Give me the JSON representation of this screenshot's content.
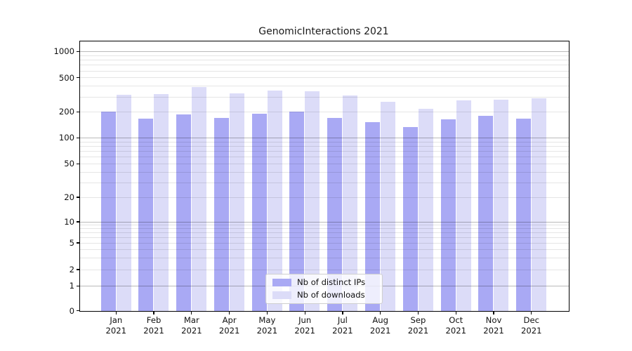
{
  "figure": {
    "background": "#ffffff"
  },
  "chart_data": {
    "type": "bar",
    "title": "GenomicInteractions 2021",
    "categories": [
      "Jan",
      "Feb",
      "Mar",
      "Apr",
      "May",
      "Jun",
      "Jul",
      "Aug",
      "Sep",
      "Oct",
      "Nov",
      "Dec"
    ],
    "x_tick_year_line": "2021",
    "series": [
      {
        "name": "Nb of distinct IPs",
        "color": "#a9a9f4",
        "values": [
          200,
          165,
          185,
          170,
          188,
          200,
          168,
          150,
          133,
          163,
          180,
          165
        ]
      },
      {
        "name": "Nb of downloads",
        "color": "#dcdcf8",
        "values": [
          315,
          320,
          390,
          330,
          350,
          345,
          310,
          260,
          218,
          270,
          278,
          285
        ]
      }
    ],
    "xlabel": "",
    "ylabel": "",
    "y_axis": {
      "scale": "symlog",
      "tick_labels": [
        "0",
        "1",
        "2",
        "5",
        "10",
        "20",
        "50",
        "100",
        "200",
        "500",
        "1000"
      ],
      "tick_values": [
        0,
        1,
        2,
        5,
        10,
        20,
        50,
        100,
        200,
        500,
        1000
      ],
      "ylim": [
        0,
        1300
      ]
    },
    "grid": "on",
    "legend": {
      "position": "lower-center-inside",
      "entries": [
        "Nb of distinct IPs",
        "Nb of downloads"
      ]
    }
  }
}
